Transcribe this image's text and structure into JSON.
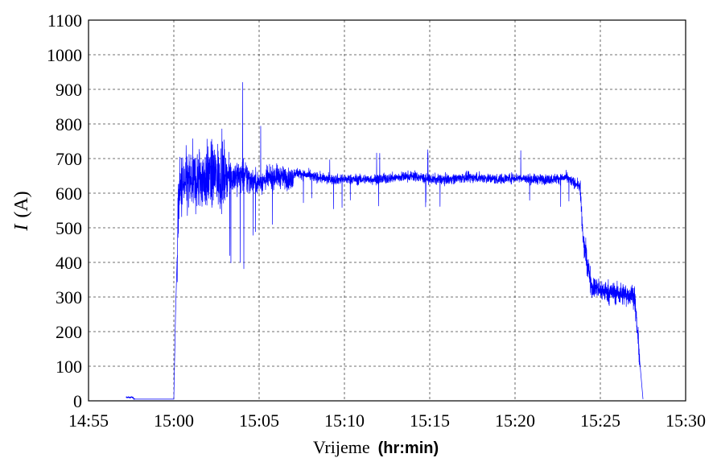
{
  "chart_data": {
    "type": "line",
    "xlabel": "Vrijeme",
    "xlabel_unit": "(hr:min)",
    "ylabel_symbol": "I",
    "ylabel_unit": "(A)",
    "x_tick_labels": [
      "14:55",
      "15:00",
      "15:05",
      "15:10",
      "15:15",
      "15:20",
      "15:25",
      "15:30"
    ],
    "y_tick_labels": [
      "0",
      "100",
      "200",
      "300",
      "400",
      "500",
      "600",
      "700",
      "800",
      "900",
      "1000",
      "1100"
    ],
    "xlim_minutes_from_1455": [
      0,
      35
    ],
    "ylim": [
      0,
      1100
    ],
    "grid": true,
    "line_color": "#0000ff",
    "series": [
      {
        "x_minutes_from_1455": [
          2.2,
          2.6,
          2.65,
          3.0,
          3.05,
          5.0,
          5.1,
          5.3,
          5.5,
          6,
          7,
          8,
          9,
          10,
          11,
          11.9,
          12.1,
          13,
          14,
          15,
          16,
          17,
          18,
          19,
          20,
          21,
          22,
          23,
          24,
          25,
          26,
          27,
          28,
          28.8,
          29.0,
          29.5,
          30,
          31,
          32,
          32.3,
          32.5
        ],
        "values": [
          10,
          10,
          5,
          5,
          5,
          5,
          250,
          600,
          620,
          630,
          650,
          650,
          650,
          630,
          650,
          640,
          660,
          650,
          640,
          640,
          640,
          640,
          645,
          650,
          640,
          640,
          645,
          645,
          640,
          645,
          640,
          640,
          645,
          620,
          460,
          330,
          320,
          310,
          305,
          120,
          5
        ]
      }
    ]
  }
}
